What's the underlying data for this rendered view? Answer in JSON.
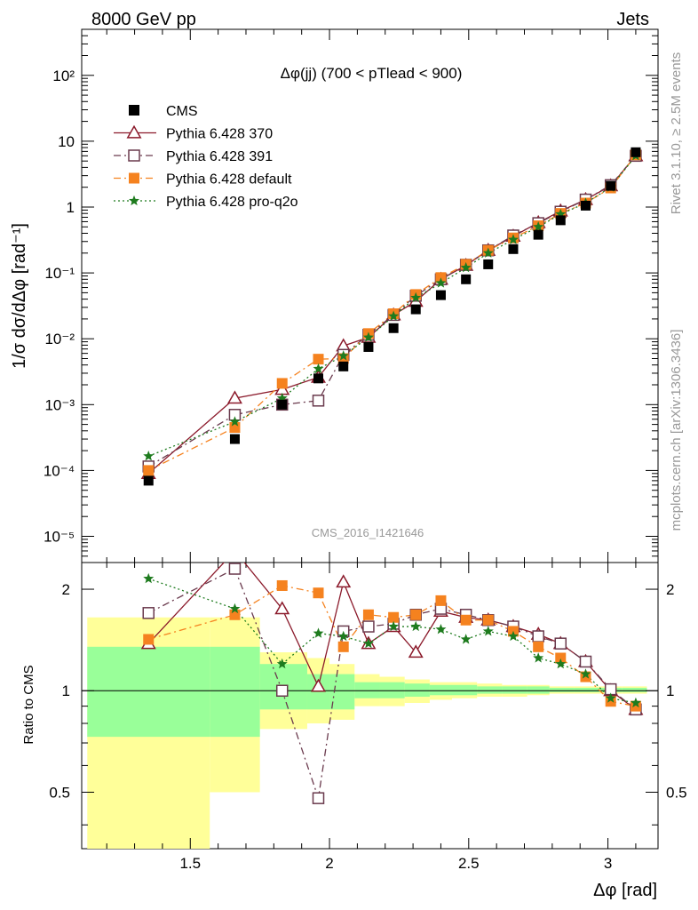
{
  "header": {
    "left": "8000 GeV pp",
    "right": "Jets"
  },
  "side_labels": {
    "top": "Rivet 3.1.10, ≥ 2.5M events",
    "bottom": "mcplots.cern.ch [arXiv:1306.3436]"
  },
  "chart_data": {
    "type": "scatter",
    "title": "Δφ(jj) (700 < pTlead <  900)",
    "watermark": "CMS_2016_I1421646",
    "ylabel_main": "1/σ dσ/dΔφ [rad⁻¹]",
    "ylabel_ratio": "Ratio to CMS",
    "xlabel": "Δφ [rad]",
    "x_axis": {
      "range": [
        1.11,
        3.18
      ],
      "ticks": [
        1.5,
        2,
        2.5,
        3
      ],
      "tick_labels": [
        "1.5",
        "2",
        "2.5",
        "3"
      ]
    },
    "main_y_axis": {
      "scale": "log",
      "range": [
        4e-06,
        500
      ],
      "ticks": [
        1e-05,
        0.0001,
        0.001,
        0.01,
        0.1,
        1,
        10,
        100
      ],
      "tick_labels": [
        "10⁻⁵",
        "10⁻⁴",
        "10⁻³",
        "10⁻²",
        "10⁻¹",
        "1",
        "10",
        "10²"
      ]
    },
    "ratio_y_axis": {
      "scale": "log",
      "range": [
        0.34,
        2.4
      ],
      "ticks": [
        0.5,
        1,
        2
      ],
      "tick_labels": [
        "0.5",
        "1",
        "2"
      ]
    },
    "x": [
      1.35,
      1.66,
      1.83,
      1.96,
      2.05,
      2.14,
      2.23,
      2.31,
      2.4,
      2.49,
      2.57,
      2.66,
      2.75,
      2.83,
      2.92,
      3.01,
      3.1
    ],
    "bin_edges": [
      1.13,
      1.57,
      1.75,
      1.92,
      2.0,
      2.09,
      2.18,
      2.27,
      2.36,
      2.44,
      2.53,
      2.62,
      2.71,
      2.79,
      2.88,
      2.97,
      3.05,
      3.14
    ],
    "legend": {
      "position": "top-left",
      "entries": [
        "CMS",
        "Pythia 6.428 370",
        "Pythia 6.428 391",
        "Pythia 6.428 default",
        "Pythia 6.428 pro-q2o"
      ]
    },
    "data_series": {
      "name": "CMS",
      "color": "#000000",
      "marker": "filled-square",
      "values": [
        7e-05,
        0.0003,
        0.001,
        0.0025,
        0.0038,
        0.0075,
        0.0145,
        0.028,
        0.046,
        0.08,
        0.135,
        0.23,
        0.38,
        0.63,
        1.05,
        2.1,
        6.8
      ]
    },
    "series": [
      {
        "name": "Pythia 6.428 370",
        "color": "#8b1a2b",
        "marker": "open-triangle",
        "dash": "solid",
        "values": [
          9e-05,
          0.00125,
          0.0017,
          0.0026,
          0.0078,
          0.0105,
          0.023,
          0.037,
          0.08,
          0.13,
          0.22,
          0.36,
          0.58,
          0.87,
          1.3,
          2.1,
          6.0
        ],
        "ratio": [
          1.38,
          2.6,
          1.75,
          1.03,
          2.1,
          1.38,
          1.55,
          1.3,
          1.72,
          1.65,
          1.62,
          1.55,
          1.47,
          1.38,
          1.22,
          1.0,
          0.88
        ]
      },
      {
        "name": "Pythia 6.428 391",
        "color": "#6a3a4d",
        "marker": "open-square",
        "dash": "dashdot",
        "values": [
          0.000115,
          0.0007,
          0.001,
          0.00115,
          0.0057,
          0.0115,
          0.023,
          0.045,
          0.08,
          0.133,
          0.22,
          0.37,
          0.57,
          0.85,
          1.3,
          2.15,
          6.0
        ],
        "ratio": [
          1.7,
          2.3,
          1.0,
          0.48,
          1.5,
          1.55,
          1.58,
          1.68,
          1.75,
          1.68,
          1.62,
          1.55,
          1.45,
          1.38,
          1.22,
          1.01,
          0.88
        ]
      },
      {
        "name": "Pythia 6.428 default",
        "color": "#f5821f",
        "marker": "filled-square",
        "dash": "dashdot",
        "values": [
          0.0001,
          0.00045,
          0.0021,
          0.0049,
          0.005,
          0.012,
          0.024,
          0.047,
          0.085,
          0.135,
          0.22,
          0.34,
          0.52,
          0.8,
          1.15,
          1.95,
          6.2
        ],
        "ratio": [
          1.42,
          1.68,
          2.05,
          1.95,
          1.35,
          1.68,
          1.65,
          1.68,
          1.85,
          1.62,
          1.62,
          1.5,
          1.35,
          1.25,
          1.1,
          0.93,
          0.9
        ]
      },
      {
        "name": "Pythia 6.428 pro-q2o",
        "color": "#1e7b1e",
        "marker": "star",
        "dash": "dotted",
        "values": [
          0.000165,
          0.00055,
          0.00125,
          0.0035,
          0.0055,
          0.0105,
          0.022,
          0.042,
          0.07,
          0.12,
          0.2,
          0.32,
          0.5,
          0.78,
          1.15,
          2.0,
          6.0
        ],
        "ratio": [
          2.15,
          1.75,
          1.2,
          1.48,
          1.45,
          1.38,
          1.55,
          1.55,
          1.52,
          1.42,
          1.5,
          1.45,
          1.25,
          1.2,
          1.12,
          0.95,
          0.92
        ]
      }
    ],
    "band_stat": [
      [
        0.73,
        1.35
      ],
      [
        0.73,
        1.35
      ],
      [
        0.88,
        1.2
      ],
      [
        0.88,
        1.12
      ],
      [
        0.88,
        1.12
      ],
      [
        0.95,
        1.06
      ],
      [
        0.95,
        1.06
      ],
      [
        0.96,
        1.05
      ],
      [
        0.97,
        1.04
      ],
      [
        0.97,
        1.04
      ],
      [
        0.98,
        1.03
      ],
      [
        0.98,
        1.03
      ],
      [
        0.98,
        1.03
      ],
      [
        0.99,
        1.02
      ],
      [
        0.99,
        1.02
      ],
      [
        0.99,
        1.02
      ],
      [
        0.99,
        1.02
      ]
    ],
    "band_total": [
      [
        0.33,
        1.65
      ],
      [
        0.5,
        1.65
      ],
      [
        0.77,
        1.3
      ],
      [
        0.8,
        1.25
      ],
      [
        0.82,
        1.2
      ],
      [
        0.9,
        1.12
      ],
      [
        0.9,
        1.1
      ],
      [
        0.92,
        1.08
      ],
      [
        0.94,
        1.06
      ],
      [
        0.95,
        1.06
      ],
      [
        0.96,
        1.05
      ],
      [
        0.96,
        1.04
      ],
      [
        0.97,
        1.04
      ],
      [
        0.98,
        1.03
      ],
      [
        0.98,
        1.03
      ],
      [
        0.98,
        1.03
      ],
      [
        0.98,
        1.03
      ]
    ],
    "band_colors": {
      "stat": "#99ff99",
      "total": "#ffff99"
    }
  }
}
